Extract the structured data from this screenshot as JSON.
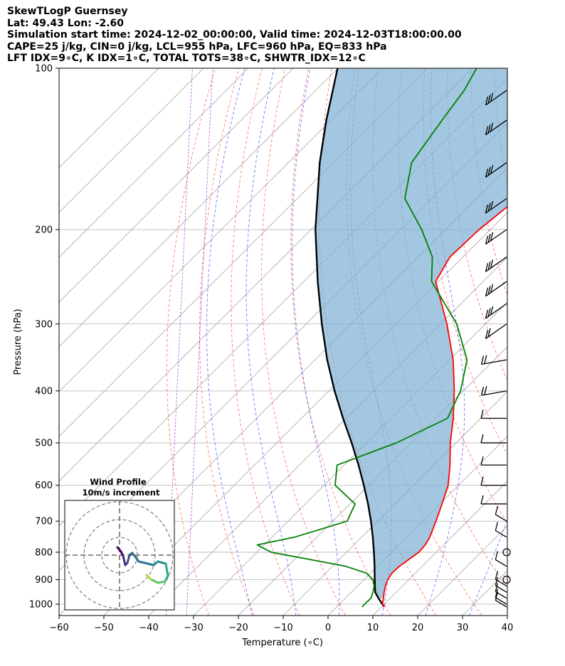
{
  "header": {
    "line1": "SkewTLogP Guernsey",
    "line2": "Lat: 49.43   Lon: -2.60",
    "line3": "Simulation start time: 2024-12-02_00:00:00, Valid time: 2024-12-03T18:00:00.00",
    "line4": "CAPE=25 j/kg, CIN=0 j/kg, LCL=955 hPa, LFC=960 hPa, EQ=833 hPa",
    "line5": "LFT IDX=9∘C, K IDX=1∘C, TOTAL TOTS=38∘C, SHWTR_IDX=12∘C"
  },
  "chart_data": {
    "type": "line",
    "subtype": "skew-t log-p",
    "xlabel": "Temperature (∘C)",
    "ylabel": "Pressure (hPa)",
    "x_ticks": [
      "−60",
      "−50",
      "−40",
      "−30",
      "−20",
      "−10",
      "0",
      "10",
      "20",
      "30",
      "40"
    ],
    "y_ticks": [
      "100",
      "200",
      "300",
      "400",
      "500",
      "600",
      "700",
      "800",
      "900",
      "1000"
    ],
    "xlim_at_bottom": [
      -60,
      40
    ],
    "ylim": [
      1050,
      100
    ],
    "y_scale": "log",
    "grid": true,
    "series": [
      {
        "name": "temperature",
        "color": "#ff0000",
        "points": [
          {
            "p": 1012,
            "t": 10.6
          },
          {
            "p": 1000,
            "t": 9.6
          },
          {
            "p": 975,
            "t": 8.5
          },
          {
            "p": 950,
            "t": 7.3
          },
          {
            "p": 925,
            "t": 6.2
          },
          {
            "p": 900,
            "t": 5.3
          },
          {
            "p": 875,
            "t": 4.8
          },
          {
            "p": 850,
            "t": 4.9
          },
          {
            "p": 825,
            "t": 5.5
          },
          {
            "p": 800,
            "t": 6.1
          },
          {
            "p": 775,
            "t": 5.9
          },
          {
            "p": 750,
            "t": 5.2
          },
          {
            "p": 700,
            "t": 3.0
          },
          {
            "p": 650,
            "t": 0.5
          },
          {
            "p": 600,
            "t": -2.3
          },
          {
            "p": 550,
            "t": -6.4
          },
          {
            "p": 500,
            "t": -11.3
          },
          {
            "p": 450,
            "t": -16.1
          },
          {
            "p": 400,
            "t": -22.0
          },
          {
            "p": 350,
            "t": -29.2
          },
          {
            "p": 300,
            "t": -38.6
          },
          {
            "p": 250,
            "t": -50.6
          },
          {
            "p": 225,
            "t": -52.9
          },
          {
            "p": 200,
            "t": -52.5
          },
          {
            "p": 175,
            "t": -50.9
          },
          {
            "p": 150,
            "t": -51.2
          },
          {
            "p": 125,
            "t": -53.4
          },
          {
            "p": 110,
            "t": -56.3
          },
          {
            "p": 100,
            "t": -58.4
          }
        ]
      },
      {
        "name": "dewpoint",
        "color": "#008000",
        "points": [
          {
            "p": 1012,
            "t": 5.7
          },
          {
            "p": 1000,
            "t": 5.6
          },
          {
            "p": 975,
            "t": 5.7
          },
          {
            "p": 950,
            "t": 4.8
          },
          {
            "p": 925,
            "t": 3.7
          },
          {
            "p": 900,
            "t": 2.0
          },
          {
            "p": 875,
            "t": -0.9
          },
          {
            "p": 850,
            "t": -7.0
          },
          {
            "p": 825,
            "t": -16.7
          },
          {
            "p": 800,
            "t": -26.8
          },
          {
            "p": 775,
            "t": -31.6
          },
          {
            "p": 750,
            "t": -25.0
          },
          {
            "p": 700,
            "t": -16.8
          },
          {
            "p": 650,
            "t": -18.9
          },
          {
            "p": 600,
            "t": -27.5
          },
          {
            "p": 550,
            "t": -31.6
          },
          {
            "p": 500,
            "t": -23.3
          },
          {
            "p": 450,
            "t": -17.4
          },
          {
            "p": 400,
            "t": -20.6
          },
          {
            "p": 350,
            "t": -26.1
          },
          {
            "p": 300,
            "t": -36.4
          },
          {
            "p": 250,
            "t": -51.5
          },
          {
            "p": 225,
            "t": -56.8
          },
          {
            "p": 200,
            "t": -65.3
          },
          {
            "p": 175,
            "t": -76.0
          },
          {
            "p": 150,
            "t": -82.5
          },
          {
            "p": 125,
            "t": -85.2
          },
          {
            "p": 110,
            "t": -86.9
          },
          {
            "p": 100,
            "t": -89.1
          }
        ]
      },
      {
        "name": "parcel",
        "color": "#000000",
        "points": [
          {
            "p": 1012,
            "t": 10.6
          },
          {
            "p": 975,
            "t": 7.4
          },
          {
            "p": 950,
            "t": 5.3
          },
          {
            "p": 900,
            "t": 2.4
          },
          {
            "p": 850,
            "t": -0.6
          },
          {
            "p": 800,
            "t": -3.9
          },
          {
            "p": 750,
            "t": -7.5
          },
          {
            "p": 700,
            "t": -11.5
          },
          {
            "p": 650,
            "t": -16.0
          },
          {
            "p": 600,
            "t": -21.1
          },
          {
            "p": 550,
            "t": -26.8
          },
          {
            "p": 500,
            "t": -33.3
          },
          {
            "p": 450,
            "t": -40.7
          },
          {
            "p": 400,
            "t": -48.7
          },
          {
            "p": 350,
            "t": -57.3
          },
          {
            "p": 300,
            "t": -66.5
          },
          {
            "p": 250,
            "t": -76.9
          },
          {
            "p": 200,
            "t": -89.0
          },
          {
            "p": 150,
            "t": -103.0
          },
          {
            "p": 125,
            "t": -111.0
          },
          {
            "p": 100,
            "t": -120.1
          }
        ]
      }
    ],
    "wind_barbs_pressures": [
      1012,
      1000,
      975,
      950,
      925,
      900,
      850,
      800,
      750,
      700,
      650,
      600,
      550,
      500,
      450,
      400,
      350,
      300,
      275,
      250,
      225,
      200,
      175,
      150,
      125,
      110
    ],
    "inset": {
      "title": "Wind Profile",
      "subtitle": "10m/s increment",
      "hodograph_colormap": "viridis"
    }
  }
}
